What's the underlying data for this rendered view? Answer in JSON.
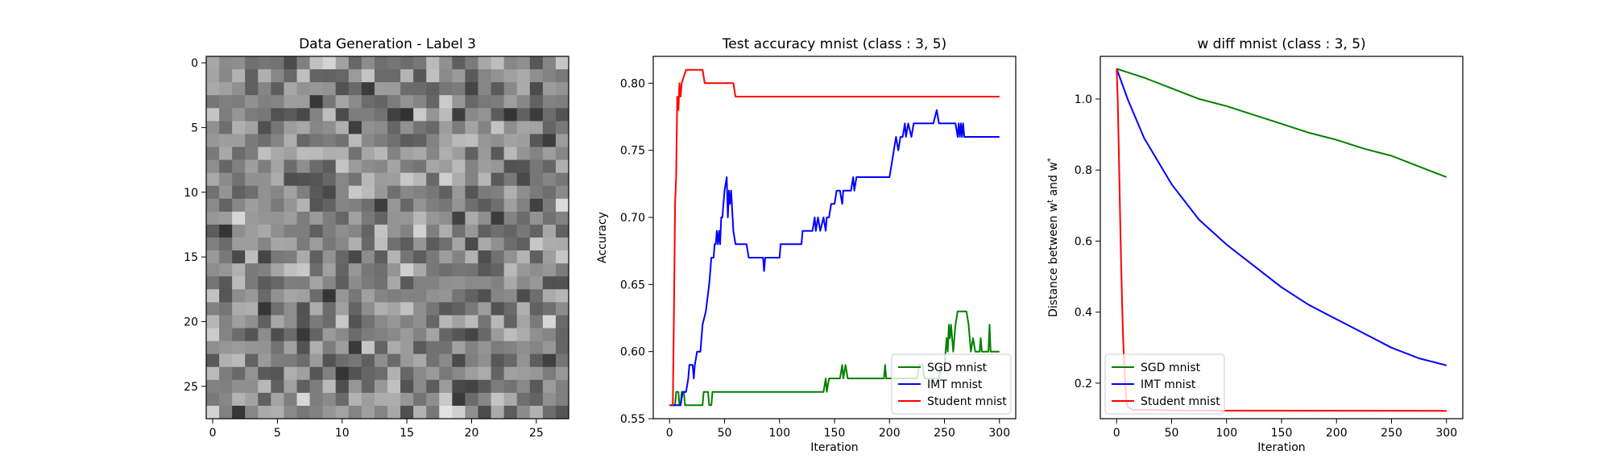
{
  "chart_data": [
    {
      "type": "heatmap",
      "title": "Data Generation - Label 3",
      "xlabel": "",
      "ylabel": "",
      "colormap": "gray",
      "rows": 28,
      "cols": 28,
      "xlim": [
        0,
        27
      ],
      "ylim": [
        27,
        0
      ],
      "xticks": [
        0,
        5,
        10,
        15,
        20,
        25
      ],
      "yticks": [
        0,
        5,
        10,
        15,
        20,
        25
      ],
      "seed": 1234567
    },
    {
      "type": "line",
      "title": "Test accuracy mnist (class : 3, 5)",
      "xlabel": "Iteration",
      "ylabel": "Accuracy",
      "xlim": [
        0,
        300
      ],
      "ylim": [
        0.55,
        0.82
      ],
      "xticks": [
        0,
        50,
        100,
        150,
        200,
        250,
        300
      ],
      "yticks": [
        0.55,
        0.6,
        0.65,
        0.7,
        0.75,
        0.8
      ],
      "legend": "lower-right",
      "grid": false,
      "series": [
        {
          "name": "SGD mnist",
          "color": "#008000",
          "points": [
            [
              0,
              0.56
            ],
            [
              5,
              0.56
            ],
            [
              6,
              0.57
            ],
            [
              8,
              0.57
            ],
            [
              9,
              0.56
            ],
            [
              10,
              0.56
            ],
            [
              11,
              0.57
            ],
            [
              13,
              0.57
            ],
            [
              14,
              0.56
            ],
            [
              30,
              0.56
            ],
            [
              31,
              0.57
            ],
            [
              35,
              0.57
            ],
            [
              36,
              0.56
            ],
            [
              38,
              0.56
            ],
            [
              39,
              0.57
            ],
            [
              140,
              0.57
            ],
            [
              142,
              0.58
            ],
            [
              143,
              0.57
            ],
            [
              145,
              0.58
            ],
            [
              155,
              0.58
            ],
            [
              157,
              0.59
            ],
            [
              158,
              0.58
            ],
            [
              160,
              0.59
            ],
            [
              162,
              0.58
            ],
            [
              195,
              0.58
            ],
            [
              196,
              0.59
            ],
            [
              197,
              0.58
            ],
            [
              225,
              0.58
            ],
            [
              227,
              0.59
            ],
            [
              230,
              0.59
            ],
            [
              232,
              0.58
            ],
            [
              245,
              0.58
            ],
            [
              247,
              0.59
            ],
            [
              250,
              0.59
            ],
            [
              251,
              0.6
            ],
            [
              252,
              0.61
            ],
            [
              253,
              0.6
            ],
            [
              254,
              0.62
            ],
            [
              255,
              0.61
            ],
            [
              256,
              0.62
            ],
            [
              258,
              0.6
            ],
            [
              259,
              0.61
            ],
            [
              260,
              0.62
            ],
            [
              262,
              0.63
            ],
            [
              270,
              0.63
            ],
            [
              272,
              0.62
            ],
            [
              273,
              0.61
            ],
            [
              274,
              0.6
            ],
            [
              276,
              0.61
            ],
            [
              278,
              0.6
            ],
            [
              282,
              0.6
            ],
            [
              283,
              0.61
            ],
            [
              284,
              0.6
            ],
            [
              290,
              0.6
            ],
            [
              291,
              0.62
            ],
            [
              292,
              0.6
            ],
            [
              300,
              0.6
            ]
          ]
        },
        {
          "name": "IMT mnist",
          "color": "#0000ff",
          "points": [
            [
              0,
              0.56
            ],
            [
              10,
              0.56
            ],
            [
              12,
              0.57
            ],
            [
              15,
              0.57
            ],
            [
              17,
              0.58
            ],
            [
              18,
              0.59
            ],
            [
              21,
              0.59
            ],
            [
              22,
              0.58
            ],
            [
              23,
              0.59
            ],
            [
              25,
              0.6
            ],
            [
              28,
              0.6
            ],
            [
              30,
              0.62
            ],
            [
              33,
              0.63
            ],
            [
              36,
              0.65
            ],
            [
              37,
              0.66
            ],
            [
              38,
              0.67
            ],
            [
              40,
              0.67
            ],
            [
              41,
              0.68
            ],
            [
              42,
              0.68
            ],
            [
              43,
              0.69
            ],
            [
              44,
              0.68
            ],
            [
              45,
              0.69
            ],
            [
              46,
              0.68
            ],
            [
              47,
              0.7
            ],
            [
              48,
              0.7
            ],
            [
              49,
              0.71
            ],
            [
              50,
              0.72
            ],
            [
              52,
              0.73
            ],
            [
              53,
              0.7
            ],
            [
              54,
              0.72
            ],
            [
              55,
              0.71
            ],
            [
              56,
              0.72
            ],
            [
              58,
              0.69
            ],
            [
              60,
              0.68
            ],
            [
              70,
              0.68
            ],
            [
              72,
              0.67
            ],
            [
              85,
              0.67
            ],
            [
              86,
              0.66
            ],
            [
              87,
              0.67
            ],
            [
              100,
              0.67
            ],
            [
              101,
              0.68
            ],
            [
              120,
              0.68
            ],
            [
              121,
              0.69
            ],
            [
              130,
              0.69
            ],
            [
              132,
              0.7
            ],
            [
              133,
              0.69
            ],
            [
              135,
              0.7
            ],
            [
              137,
              0.69
            ],
            [
              140,
              0.7
            ],
            [
              142,
              0.69
            ],
            [
              143,
              0.7
            ],
            [
              145,
              0.7
            ],
            [
              147,
              0.71
            ],
            [
              150,
              0.71
            ],
            [
              152,
              0.72
            ],
            [
              155,
              0.72
            ],
            [
              157,
              0.71
            ],
            [
              158,
              0.72
            ],
            [
              165,
              0.72
            ],
            [
              167,
              0.73
            ],
            [
              168,
              0.72
            ],
            [
              170,
              0.73
            ],
            [
              200,
              0.73
            ],
            [
              202,
              0.74
            ],
            [
              204,
              0.75
            ],
            [
              206,
              0.76
            ],
            [
              208,
              0.75
            ],
            [
              210,
              0.76
            ],
            [
              212,
              0.76
            ],
            [
              214,
              0.77
            ],
            [
              215,
              0.76
            ],
            [
              217,
              0.77
            ],
            [
              220,
              0.76
            ],
            [
              222,
              0.77
            ],
            [
              235,
              0.77
            ],
            [
              240,
              0.77
            ],
            [
              243,
              0.78
            ],
            [
              245,
              0.77
            ],
            [
              260,
              0.77
            ],
            [
              262,
              0.76
            ],
            [
              263,
              0.77
            ],
            [
              264,
              0.76
            ],
            [
              265,
              0.77
            ],
            [
              266,
              0.76
            ],
            [
              267,
              0.77
            ],
            [
              268,
              0.76
            ],
            [
              300,
              0.76
            ]
          ]
        },
        {
          "name": "Student mnist",
          "color": "#ff0000",
          "points": [
            [
              0,
              0.56
            ],
            [
              3,
              0.56
            ],
            [
              4,
              0.63
            ],
            [
              5,
              0.71
            ],
            [
              6,
              0.73
            ],
            [
              7,
              0.79
            ],
            [
              8,
              0.78
            ],
            [
              9,
              0.8
            ],
            [
              10,
              0.79
            ],
            [
              11,
              0.8
            ],
            [
              15,
              0.81
            ],
            [
              30,
              0.81
            ],
            [
              32,
              0.8
            ],
            [
              58,
              0.8
            ],
            [
              60,
              0.79
            ],
            [
              300,
              0.79
            ]
          ]
        }
      ]
    },
    {
      "type": "line",
      "title": "w diff mnist (class : 3, 5)",
      "xlabel": "Iteration",
      "ylabel": "Distance between w^t and w^*",
      "xlim": [
        0,
        300
      ],
      "ylim": [
        0.1,
        1.12
      ],
      "xticks": [
        0,
        50,
        100,
        150,
        200,
        250,
        300
      ],
      "yticks": [
        0.2,
        0.4,
        0.6,
        0.8,
        1.0
      ],
      "legend": "lower-left",
      "grid": false,
      "series": [
        {
          "name": "SGD mnist",
          "color": "#008000",
          "points": [
            [
              0,
              1.085
            ],
            [
              25,
              1.06
            ],
            [
              50,
              1.03
            ],
            [
              75,
              1.0
            ],
            [
              100,
              0.98
            ],
            [
              125,
              0.955
            ],
            [
              150,
              0.93
            ],
            [
              175,
              0.905
            ],
            [
              200,
              0.885
            ],
            [
              225,
              0.86
            ],
            [
              250,
              0.84
            ],
            [
              275,
              0.81
            ],
            [
              300,
              0.78
            ]
          ]
        },
        {
          "name": "IMT mnist",
          "color": "#0000ff",
          "points": [
            [
              0,
              1.085
            ],
            [
              10,
              1.0
            ],
            [
              25,
              0.89
            ],
            [
              50,
              0.76
            ],
            [
              75,
              0.66
            ],
            [
              100,
              0.59
            ],
            [
              125,
              0.53
            ],
            [
              150,
              0.47
            ],
            [
              175,
              0.42
            ],
            [
              200,
              0.38
            ],
            [
              225,
              0.34
            ],
            [
              250,
              0.3
            ],
            [
              275,
              0.27
            ],
            [
              300,
              0.25
            ]
          ]
        },
        {
          "name": "Student mnist",
          "color": "#ff0000",
          "points": [
            [
              0,
              1.085
            ],
            [
              1,
              1.0
            ],
            [
              2,
              0.85
            ],
            [
              3,
              0.7
            ],
            [
              4,
              0.55
            ],
            [
              5,
              0.42
            ],
            [
              6,
              0.32
            ],
            [
              7,
              0.25
            ],
            [
              8,
              0.19
            ],
            [
              9,
              0.15
            ],
            [
              10,
              0.135
            ],
            [
              12,
              0.13
            ],
            [
              15,
              0.125
            ],
            [
              30,
              0.125
            ],
            [
              60,
              0.123
            ],
            [
              300,
              0.122
            ]
          ]
        }
      ]
    }
  ]
}
